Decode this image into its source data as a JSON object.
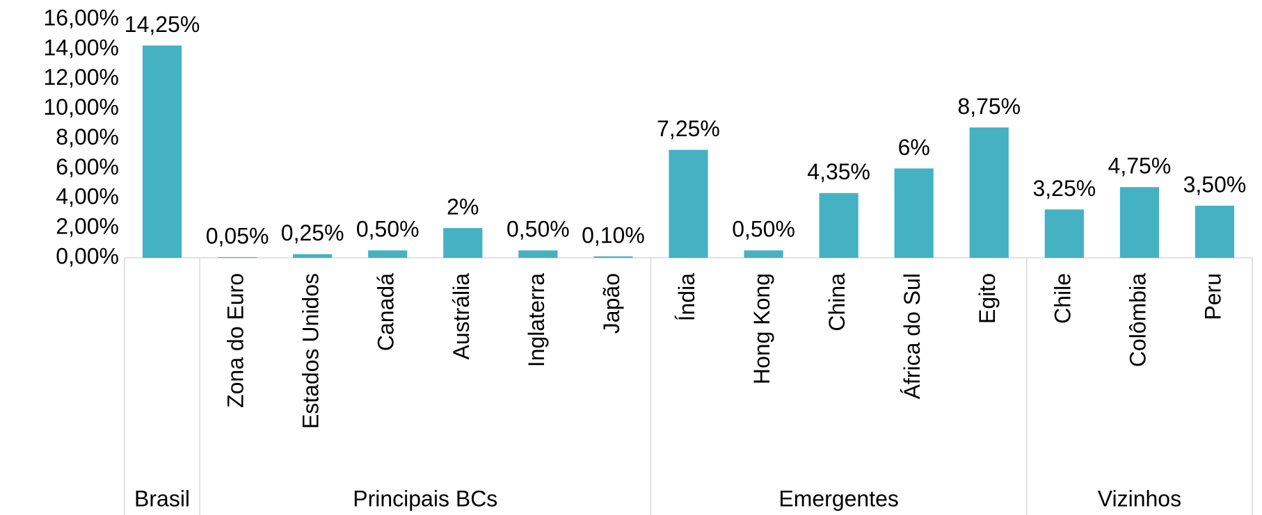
{
  "chart_data": {
    "type": "bar",
    "color": "#45b2c3",
    "ylim": [
      0,
      16
    ],
    "yticks": [
      {
        "value": 0,
        "label": "0,00%"
      },
      {
        "value": 2,
        "label": "2,00%"
      },
      {
        "value": 4,
        "label": "4,00%"
      },
      {
        "value": 6,
        "label": "6,00%"
      },
      {
        "value": 8,
        "label": "8,00%"
      },
      {
        "value": 10,
        "label": "10,00%"
      },
      {
        "value": 12,
        "label": "12,00%"
      },
      {
        "value": 14,
        "label": "14,00%"
      },
      {
        "value": 16,
        "label": "16,00%"
      }
    ],
    "groups": [
      {
        "name": "Brasil",
        "categories": [
          null
        ],
        "values": [
          14.25
        ],
        "value_labels": [
          "14,25%"
        ]
      },
      {
        "name": "Principais BCs",
        "categories": [
          "Zona do Euro",
          "Estados Unidos",
          "Canadá",
          "Austrália",
          "Inglaterra",
          "Japão"
        ],
        "values": [
          0.05,
          0.25,
          0.5,
          2,
          0.5,
          0.1
        ],
        "value_labels": [
          "0,05%",
          "0,25%",
          "0,50%",
          "2%",
          "0,50%",
          "0,10%"
        ]
      },
      {
        "name": "Emergentes",
        "categories": [
          "Índia",
          "Hong Kong",
          "China",
          "África do Sul",
          "Egito"
        ],
        "values": [
          7.25,
          0.5,
          4.35,
          6,
          8.75
        ],
        "value_labels": [
          "7,25%",
          "0,50%",
          "4,35%",
          "6%",
          "8,75%"
        ]
      },
      {
        "name": "Vizinhos",
        "categories": [
          "Chile",
          "Colômbia",
          "Peru"
        ],
        "values": [
          3.25,
          4.75,
          3.5
        ],
        "value_labels": [
          "3,25%",
          "4,75%",
          "3,50%"
        ]
      }
    ]
  }
}
